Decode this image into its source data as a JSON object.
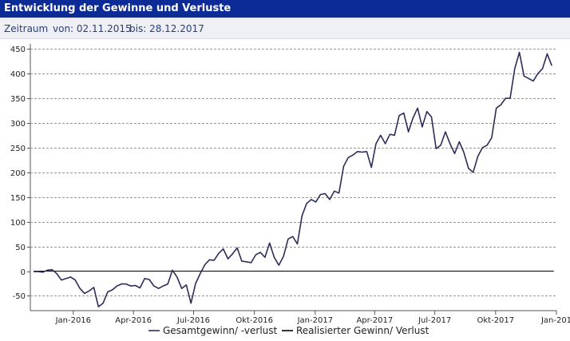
{
  "header": {
    "title": "Entwicklung der Gewinne und Verluste"
  },
  "range": {
    "label": "Zeitraum",
    "from": "von: 02.11.2015",
    "to": "bis: 28.12.2017"
  },
  "colors": {
    "title_bar": "#0d2b96",
    "line": "#2b2d5a",
    "zero_line": "#000000",
    "grid": "#999999"
  },
  "chart_data": {
    "type": "line",
    "title": "",
    "xlabel": "",
    "ylabel": "",
    "grid": true,
    "legend": "bottom",
    "ylim": [
      -80,
      460
    ],
    "y_ticks": [
      -50,
      0,
      50,
      100,
      150,
      200,
      250,
      300,
      350,
      400,
      450
    ],
    "x_range": [
      "2015-10-28",
      "2018-01-01"
    ],
    "x_ticks": [
      {
        "date": "2016-01-01",
        "label": "Jan-2016"
      },
      {
        "date": "2016-04-01",
        "label": "Apr-2016"
      },
      {
        "date": "2016-07-01",
        "label": "Jul-2016"
      },
      {
        "date": "2016-10-01",
        "label": "Okt-2016"
      },
      {
        "date": "2017-01-01",
        "label": "Jan-2017"
      },
      {
        "date": "2017-04-01",
        "label": "Apr-2017"
      },
      {
        "date": "2017-07-01",
        "label": "Jul-2017"
      },
      {
        "date": "2017-10-01",
        "label": "Okt-2017"
      },
      {
        "date": "2018-01-01",
        "label": "Jan-201"
      }
    ],
    "series": [
      {
        "name": "Gesamtgewinn/ -verlust",
        "x": [
          "2015-11-02",
          "2015-11-09",
          "2015-11-16",
          "2015-11-23",
          "2015-11-30",
          "2015-12-07",
          "2015-12-14",
          "2015-12-21",
          "2015-12-28",
          "2016-01-04",
          "2016-01-11",
          "2016-01-18",
          "2016-01-25",
          "2016-02-01",
          "2016-02-08",
          "2016-02-15",
          "2016-02-22",
          "2016-02-29",
          "2016-03-07",
          "2016-03-14",
          "2016-03-21",
          "2016-03-28",
          "2016-04-04",
          "2016-04-11",
          "2016-04-18",
          "2016-04-25",
          "2016-05-02",
          "2016-05-09",
          "2016-05-16",
          "2016-05-23",
          "2016-05-30",
          "2016-06-06",
          "2016-06-13",
          "2016-06-20",
          "2016-06-27",
          "2016-07-04",
          "2016-07-11",
          "2016-07-18",
          "2016-07-25",
          "2016-08-01",
          "2016-08-08",
          "2016-08-15",
          "2016-08-22",
          "2016-08-29",
          "2016-09-05",
          "2016-09-12",
          "2016-09-19",
          "2016-09-26",
          "2016-10-03",
          "2016-10-10",
          "2016-10-17",
          "2016-10-24",
          "2016-10-31",
          "2016-11-07",
          "2016-11-14",
          "2016-11-21",
          "2016-11-28",
          "2016-12-05",
          "2016-12-12",
          "2016-12-19",
          "2016-12-26",
          "2017-01-02",
          "2017-01-09",
          "2017-01-16",
          "2017-01-23",
          "2017-01-30",
          "2017-02-06",
          "2017-02-13",
          "2017-02-20",
          "2017-02-27",
          "2017-03-06",
          "2017-03-13",
          "2017-03-20",
          "2017-03-27",
          "2017-04-03",
          "2017-04-10",
          "2017-04-17",
          "2017-04-24",
          "2017-05-01",
          "2017-05-08",
          "2017-05-15",
          "2017-05-22",
          "2017-05-29",
          "2017-06-05",
          "2017-06-12",
          "2017-06-19",
          "2017-06-26",
          "2017-07-03",
          "2017-07-10",
          "2017-07-17",
          "2017-07-24",
          "2017-07-31",
          "2017-08-07",
          "2017-08-14",
          "2017-08-21",
          "2017-08-28",
          "2017-09-04",
          "2017-09-11",
          "2017-09-18",
          "2017-09-25",
          "2017-10-02",
          "2017-10-09",
          "2017-10-16",
          "2017-10-23",
          "2017-10-30",
          "2017-11-06",
          "2017-11-13",
          "2017-11-20",
          "2017-11-27",
          "2017-12-04",
          "2017-12-11",
          "2017-12-18",
          "2017-12-25"
        ],
        "values": [
          -1,
          -1,
          -2,
          2,
          3,
          -5,
          -18,
          -15,
          -12,
          -18,
          -35,
          -45,
          -40,
          -33,
          -72,
          -65,
          -42,
          -38,
          -30,
          -26,
          -26,
          -30,
          -29,
          -34,
          -15,
          -17,
          -30,
          -35,
          -30,
          -26,
          2,
          -12,
          -35,
          -28,
          -65,
          -25,
          -5,
          13,
          23,
          22,
          36,
          45,
          25,
          35,
          47,
          20,
          19,
          17,
          33,
          38,
          28,
          57,
          28,
          12,
          30,
          65,
          70,
          55,
          112,
          137,
          145,
          140,
          155,
          157,
          145,
          162,
          158,
          212,
          230,
          235,
          242,
          241,
          242,
          210,
          258,
          275,
          258,
          277,
          275,
          315,
          320,
          282,
          310,
          330,
          292,
          323,
          312,
          248,
          255,
          282,
          258,
          238,
          262,
          240,
          208,
          200,
          232,
          250,
          255,
          270,
          330,
          337,
          350,
          350,
          410,
          443,
          395,
          390,
          385,
          400,
          410,
          440,
          416
        ]
      },
      {
        "name": "Realisierter Gewinn/ Verlust",
        "x": [
          "2015-11-02",
          "2017-12-28"
        ],
        "values": [
          0,
          0
        ]
      }
    ]
  }
}
